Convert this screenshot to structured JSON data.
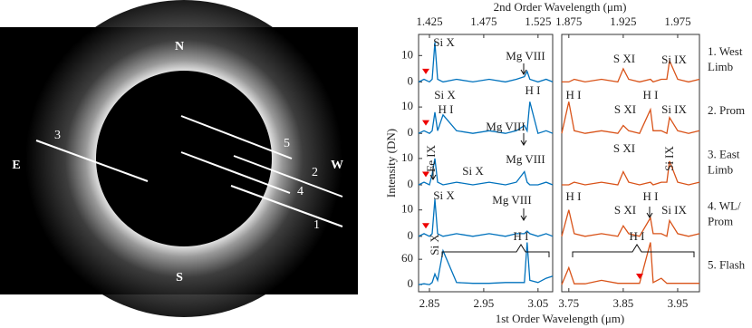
{
  "image_panel": {
    "north": "N",
    "south": "S",
    "east": "E",
    "west": "W",
    "slits": [
      "1",
      "2",
      "3",
      "4",
      "5"
    ]
  },
  "chart_data": {
    "type": "line",
    "x_label": "1st Order Wavelength (μm)",
    "x2_label": "2nd Order Wavelength (μm)",
    "y_label": "Intensity (DN)",
    "blocks": [
      {
        "xlim": [
          2.83,
          3.077
        ],
        "xticks": [
          2.85,
          2.95,
          3.05
        ],
        "x2ticks": [
          1.425,
          1.475,
          1.525
        ],
        "color": "#0072bd",
        "x": [
          2.83,
          2.84,
          2.85,
          2.855,
          2.86,
          2.865,
          2.875,
          2.9,
          2.93,
          2.96,
          2.99,
          3.01,
          3.025,
          3.03,
          3.035,
          3.05,
          3.065,
          3.077
        ]
      },
      {
        "xlim": [
          3.737,
          3.99
        ],
        "xticks": [
          3.75,
          3.85,
          3.95
        ],
        "x2ticks": [
          1.875,
          1.925,
          1.975
        ],
        "color": "#d95319",
        "x": [
          3.737,
          3.75,
          3.76,
          3.78,
          3.81,
          3.84,
          3.85,
          3.86,
          3.88,
          3.9,
          3.905,
          3.92,
          3.93,
          3.935,
          3.95,
          3.97,
          3.99
        ]
      }
    ],
    "rows": [
      {
        "label": [
          "1. West",
          "Limb"
        ],
        "ylim": [
          -1.5,
          18
        ],
        "yticks": [
          0,
          10
        ],
        "values": [
          [
            0,
            1,
            0,
            1,
            15,
            1,
            0,
            1,
            0,
            1,
            0,
            1,
            2,
            4,
            1,
            0,
            1,
            0
          ],
          [
            0,
            0,
            1,
            0,
            1,
            0,
            5,
            1,
            0,
            1,
            0,
            1,
            1,
            8,
            1,
            0,
            1
          ]
        ],
        "annotations": [
          "Si X",
          "Mg VIII",
          "S XI",
          "Si IX"
        ]
      },
      {
        "label": [
          "2. Prom"
        ],
        "ylim": [
          -1.5,
          18
        ],
        "yticks": [
          0,
          10
        ],
        "values": [
          [
            0,
            1,
            0,
            1,
            8,
            1,
            7,
            1,
            0,
            1,
            0,
            1,
            3,
            1,
            12,
            0,
            1,
            0
          ],
          [
            0,
            12,
            1,
            0,
            1,
            0,
            3,
            1,
            0,
            9,
            1,
            1,
            0,
            6,
            1,
            0,
            1
          ]
        ],
        "annotations": [
          "Si X",
          "H I",
          "Mg VIII",
          "H I",
          "H I",
          "S XI",
          "H I",
          "Si IX"
        ]
      },
      {
        "label": [
          "3. East",
          "Limb"
        ],
        "ylim": [
          -1.5,
          18
        ],
        "yticks": [
          0,
          10
        ],
        "values": [
          [
            0,
            1,
            0,
            4,
            10,
            1,
            0,
            1,
            0,
            1,
            0,
            1,
            5,
            1,
            0,
            0,
            1,
            0
          ],
          [
            0,
            0,
            1,
            0,
            1,
            0,
            5,
            1,
            0,
            1,
            0,
            1,
            1,
            9,
            1,
            0,
            1
          ]
        ],
        "annotations": [
          "Si X",
          "Fe IX",
          "Mg VIII",
          "S XI",
          "Si IX"
        ]
      },
      {
        "label": [
          "4. WL/",
          "Prom"
        ],
        "ylim": [
          -1.5,
          18
        ],
        "yticks": [
          0,
          10
        ],
        "values": [
          [
            0,
            1,
            0,
            1,
            14,
            1,
            0,
            1,
            0,
            1,
            0,
            1,
            1,
            2,
            1,
            0,
            1,
            0
          ],
          [
            0,
            10,
            1,
            0,
            1,
            0,
            4,
            1,
            0,
            7,
            1,
            1,
            0,
            6,
            1,
            0,
            1
          ]
        ],
        "annotations": [
          "Si X",
          "Mg VIII",
          "H I",
          "S XI",
          "H I",
          "Si IX"
        ]
      },
      {
        "label": [
          "5. Flash"
        ],
        "ylim": [
          -17,
          105
        ],
        "yticks": [
          0,
          60
        ],
        "values": [
          [
            0,
            2,
            0,
            5,
            25,
            10,
            80,
            5,
            3,
            3,
            5,
            5,
            5,
            100,
            10,
            5,
            15,
            20
          ],
          [
            0,
            40,
            2,
            2,
            10,
            3,
            3,
            3,
            3,
            100,
            5,
            15,
            3,
            3,
            3,
            3,
            3
          ]
        ],
        "annotations": [
          "Si X",
          "H I",
          "H I"
        ]
      }
    ]
  }
}
